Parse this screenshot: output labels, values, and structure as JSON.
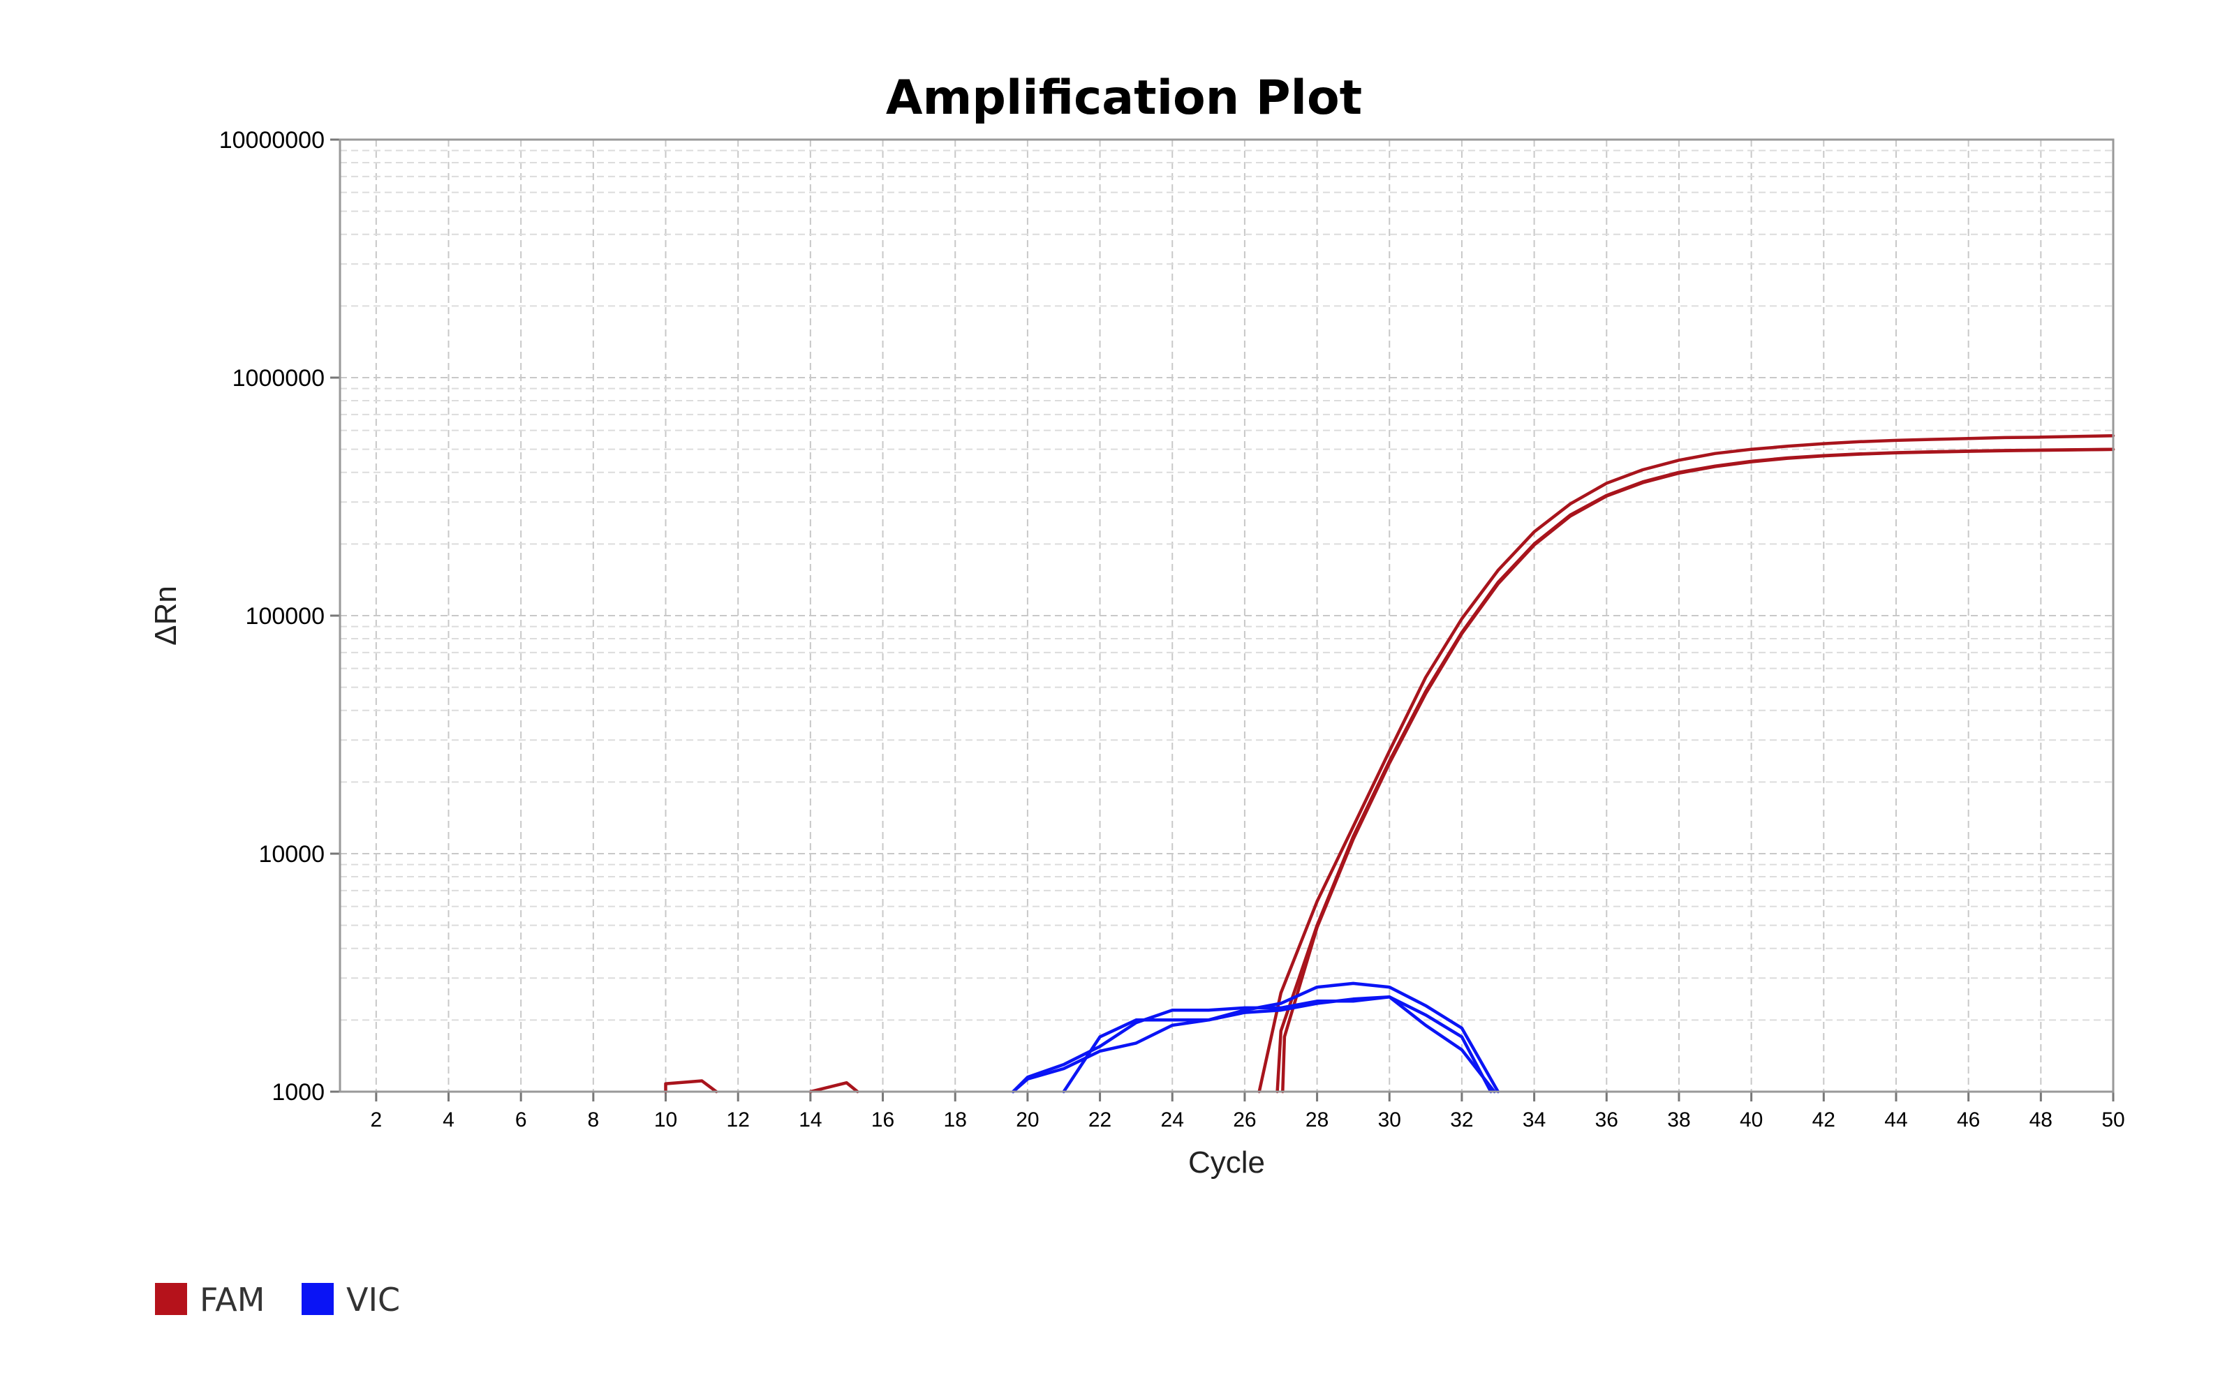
{
  "chart_data": {
    "type": "line",
    "title": "Amplification Plot",
    "xlabel": "Cycle",
    "ylabel": "ΔRn",
    "yscale": "log",
    "xlim": [
      1,
      50
    ],
    "ylim": [
      1000,
      10000000
    ],
    "x_ticks": [
      2,
      4,
      6,
      8,
      10,
      12,
      14,
      16,
      18,
      20,
      22,
      24,
      26,
      28,
      30,
      32,
      34,
      36,
      38,
      40,
      42,
      44,
      46,
      48,
      50
    ],
    "y_ticks": [
      1000,
      10000,
      100000,
      1000000,
      10000000
    ],
    "y_tick_labels": [
      "1000",
      "10000",
      "100000",
      "1000000",
      "10000000"
    ],
    "grid": true,
    "legend_position": "bottom-left",
    "legend": [
      {
        "name": "FAM",
        "color": "#b5121b"
      },
      {
        "name": "VIC",
        "color": "#0a14f5"
      }
    ],
    "series": [
      {
        "name": "FAM",
        "color": "#a8141c",
        "points": [
          [
            26.4,
            1000
          ],
          [
            27,
            2600
          ],
          [
            28,
            6300
          ],
          [
            29,
            13000
          ],
          [
            30,
            27000
          ],
          [
            31,
            55000
          ],
          [
            32,
            97000
          ],
          [
            33,
            155000
          ],
          [
            34,
            225000
          ],
          [
            35,
            295000
          ],
          [
            36,
            360000
          ],
          [
            37,
            410000
          ],
          [
            38,
            450000
          ],
          [
            39,
            480000
          ],
          [
            40,
            500000
          ],
          [
            41,
            515000
          ],
          [
            42,
            528000
          ],
          [
            43,
            538000
          ],
          [
            44,
            545000
          ],
          [
            45,
            550000
          ],
          [
            46,
            555000
          ],
          [
            47,
            560000
          ],
          [
            48,
            562000
          ],
          [
            49,
            566000
          ],
          [
            50,
            570000
          ]
        ]
      },
      {
        "name": "FAM",
        "color": "#a8141c",
        "points": [
          [
            26.9,
            1000
          ],
          [
            27,
            1800
          ],
          [
            28,
            5000
          ],
          [
            29,
            11800
          ],
          [
            30,
            24500
          ],
          [
            31,
            48000
          ],
          [
            32,
            85000
          ],
          [
            33,
            138000
          ],
          [
            34,
            200000
          ],
          [
            35,
            265000
          ],
          [
            36,
            320000
          ],
          [
            37,
            365000
          ],
          [
            38,
            400000
          ],
          [
            39,
            425000
          ],
          [
            40,
            445000
          ],
          [
            41,
            460000
          ],
          [
            42,
            470000
          ],
          [
            43,
            478000
          ],
          [
            44,
            484000
          ],
          [
            45,
            488000
          ],
          [
            46,
            491000
          ],
          [
            47,
            494000
          ],
          [
            48,
            496000
          ],
          [
            49,
            498000
          ],
          [
            50,
            500000
          ]
        ]
      },
      {
        "name": "FAM",
        "color": "#a8141c",
        "points": [
          [
            27.05,
            1000
          ],
          [
            27.1,
            1700
          ],
          [
            28,
            4900
          ],
          [
            29,
            11500
          ],
          [
            30,
            24000
          ],
          [
            31,
            47000
          ],
          [
            32,
            84000
          ],
          [
            33,
            136000
          ],
          [
            34,
            198000
          ],
          [
            35,
            262000
          ],
          [
            36,
            318000
          ],
          [
            37,
            362000
          ],
          [
            38,
            397000
          ],
          [
            39,
            423000
          ],
          [
            40,
            443000
          ],
          [
            41,
            458000
          ],
          [
            42,
            469000
          ],
          [
            43,
            477000
          ],
          [
            44,
            483000
          ],
          [
            45,
            487000
          ],
          [
            46,
            490000
          ],
          [
            47,
            493000
          ],
          [
            48,
            495000
          ],
          [
            49,
            497000
          ],
          [
            50,
            499000
          ]
        ]
      },
      {
        "name": "FAM",
        "color": "#a8141c",
        "points": [
          [
            10,
            1000
          ],
          [
            10,
            1080
          ],
          [
            11,
            1110
          ],
          [
            11.4,
            1000
          ]
        ]
      },
      {
        "name": "FAM",
        "color": "#a8141c",
        "points": [
          [
            14,
            1000
          ],
          [
            15,
            1090
          ],
          [
            15.3,
            1000
          ]
        ]
      },
      {
        "name": "VIC",
        "color": "#0a14f5",
        "points": [
          [
            19.6,
            1000
          ],
          [
            20,
            1150
          ],
          [
            21,
            1300
          ],
          [
            22,
            1550
          ],
          [
            23,
            1950
          ],
          [
            24,
            2200
          ],
          [
            25,
            2200
          ],
          [
            26,
            2250
          ],
          [
            27,
            2250
          ],
          [
            28,
            2400
          ],
          [
            29,
            2400
          ],
          [
            30,
            2500
          ],
          [
            31,
            2100
          ],
          [
            32,
            1700
          ],
          [
            32.8,
            1000
          ]
        ]
      },
      {
        "name": "VIC",
        "color": "#0a14f5",
        "points": [
          [
            19.6,
            1000
          ],
          [
            20,
            1130
          ],
          [
            21,
            1250
          ],
          [
            22,
            1480
          ],
          [
            23,
            1600
          ],
          [
            24,
            1900
          ],
          [
            25,
            2000
          ],
          [
            26,
            2150
          ],
          [
            27,
            2200
          ],
          [
            28,
            2350
          ],
          [
            29,
            2450
          ],
          [
            30,
            2500
          ],
          [
            31,
            1900
          ],
          [
            32,
            1500
          ],
          [
            32.9,
            1000
          ]
        ]
      },
      {
        "name": "VIC",
        "color": "#0a14f5",
        "points": [
          [
            21,
            1000
          ],
          [
            22,
            1700
          ],
          [
            23,
            2000
          ],
          [
            24,
            2000
          ],
          [
            25,
            2000
          ],
          [
            26,
            2200
          ],
          [
            27,
            2350
          ],
          [
            28,
            2750
          ],
          [
            29,
            2850
          ],
          [
            30,
            2750
          ],
          [
            31,
            2300
          ],
          [
            32,
            1850
          ],
          [
            33,
            1000
          ]
        ]
      }
    ]
  }
}
